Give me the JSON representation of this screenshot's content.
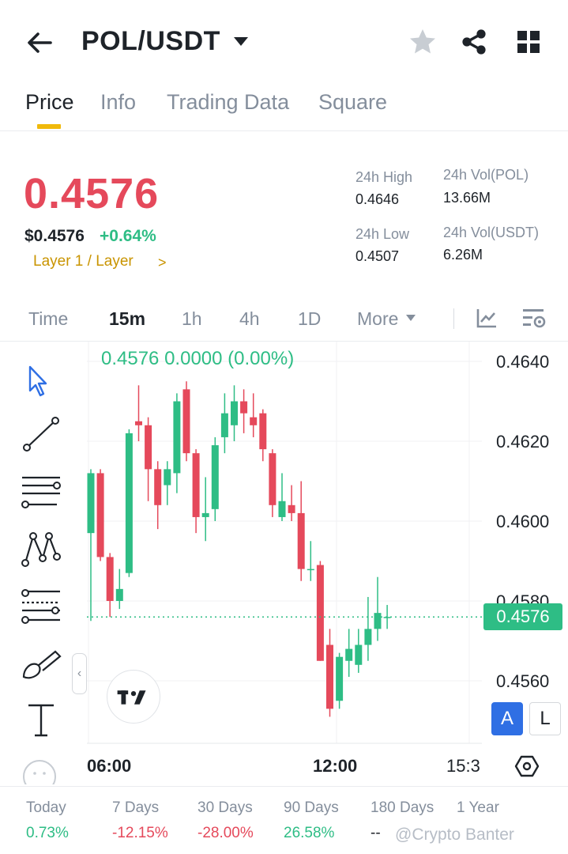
{
  "header": {
    "title": "POL/USDT",
    "icons": [
      "back-arrow-icon",
      "caret-down-icon",
      "star-icon",
      "share-icon",
      "grid-icon"
    ]
  },
  "tabs": [
    {
      "label": "Price",
      "active": true
    },
    {
      "label": "Info",
      "active": false
    },
    {
      "label": "Trading Data",
      "active": false
    },
    {
      "label": "Square",
      "active": false
    }
  ],
  "price": {
    "last": "0.4576",
    "usd": "$0.4576",
    "change": "+0.64%",
    "sector": "Layer 1 / Layer",
    "sector_chevron": ">"
  },
  "stats": {
    "high_label": "24h High",
    "high_value": "0.4646",
    "low_label": "24h Low",
    "low_value": "0.4507",
    "vol_base_label": "24h Vol(POL)",
    "vol_base_value": "13.66M",
    "vol_quote_label": "24h Vol(USDT)",
    "vol_quote_value": "6.26M"
  },
  "intervals": [
    {
      "label": "Time",
      "active": false
    },
    {
      "label": "15m",
      "active": true
    },
    {
      "label": "1h",
      "active": false
    },
    {
      "label": "4h",
      "active": false
    },
    {
      "label": "1D",
      "active": false
    },
    {
      "label": "More",
      "active": false
    }
  ],
  "chart": {
    "ohlc_readout": "0.4576  0.0000 (0.00%)",
    "price_axis": [
      "0.4640",
      "0.4620",
      "0.4600",
      "0.4580",
      "0.4560"
    ],
    "last_price_badge": "0.4576",
    "time_axis": [
      "06:00",
      "12:00",
      "15:3"
    ],
    "collapse_glyph": "‹",
    "mode_a": "A",
    "mode_l": "L",
    "colors": {
      "up": "#2ebd85",
      "down": "#e5495b",
      "accent": "#f0b90b"
    }
  },
  "chart_data": {
    "type": "candlestick",
    "ylim": [
      0.4544,
      0.464
    ],
    "candles": [
      {
        "o": 0.4597,
        "h": 0.4613,
        "l": 0.4575,
        "c": 0.4612
      },
      {
        "o": 0.4612,
        "h": 0.4613,
        "l": 0.459,
        "c": 0.4591
      },
      {
        "o": 0.4591,
        "h": 0.4592,
        "l": 0.4576,
        "c": 0.458
      },
      {
        "o": 0.458,
        "h": 0.4588,
        "l": 0.4578,
        "c": 0.4583
      },
      {
        "o": 0.4587,
        "h": 0.4623,
        "l": 0.4586,
        "c": 0.4622
      },
      {
        "o": 0.4625,
        "h": 0.4634,
        "l": 0.462,
        "c": 0.4624
      },
      {
        "o": 0.4624,
        "h": 0.4626,
        "l": 0.4605,
        "c": 0.4613
      },
      {
        "o": 0.4613,
        "h": 0.4615,
        "l": 0.4598,
        "c": 0.4604
      },
      {
        "o": 0.4609,
        "h": 0.4615,
        "l": 0.4604,
        "c": 0.4613
      },
      {
        "o": 0.4612,
        "h": 0.4632,
        "l": 0.4607,
        "c": 0.463
      },
      {
        "o": 0.4633,
        "h": 0.4635,
        "l": 0.4615,
        "c": 0.4617
      },
      {
        "o": 0.4617,
        "h": 0.4618,
        "l": 0.4597,
        "c": 0.4601
      },
      {
        "o": 0.4601,
        "h": 0.4611,
        "l": 0.4595,
        "c": 0.4602
      },
      {
        "o": 0.4603,
        "h": 0.4621,
        "l": 0.46,
        "c": 0.4619
      },
      {
        "o": 0.4621,
        "h": 0.4632,
        "l": 0.4617,
        "c": 0.4627
      },
      {
        "o": 0.4624,
        "h": 0.4634,
        "l": 0.462,
        "c": 0.463
      },
      {
        "o": 0.463,
        "h": 0.4633,
        "l": 0.4622,
        "c": 0.4627
      },
      {
        "o": 0.4626,
        "h": 0.4632,
        "l": 0.4621,
        "c": 0.4624
      },
      {
        "o": 0.4627,
        "h": 0.4628,
        "l": 0.4615,
        "c": 0.4618
      },
      {
        "o": 0.4617,
        "h": 0.4618,
        "l": 0.4601,
        "c": 0.4604
      },
      {
        "o": 0.4601,
        "h": 0.4612,
        "l": 0.46,
        "c": 0.4605
      },
      {
        "o": 0.4604,
        "h": 0.4609,
        "l": 0.46,
        "c": 0.4602
      },
      {
        "o": 0.4602,
        "h": 0.461,
        "l": 0.4585,
        "c": 0.4588
      },
      {
        "o": 0.4588,
        "h": 0.4595,
        "l": 0.4585,
        "c": 0.4588
      },
      {
        "o": 0.4589,
        "h": 0.459,
        "l": 0.4565,
        "c": 0.4565
      },
      {
        "o": 0.4569,
        "h": 0.4573,
        "l": 0.4551,
        "c": 0.4553
      },
      {
        "o": 0.4555,
        "h": 0.4567,
        "l": 0.4553,
        "c": 0.4566
      },
      {
        "o": 0.4565,
        "h": 0.4573,
        "l": 0.4561,
        "c": 0.4568
      },
      {
        "o": 0.4564,
        "h": 0.4573,
        "l": 0.4562,
        "c": 0.4569
      },
      {
        "o": 0.4569,
        "h": 0.4581,
        "l": 0.4565,
        "c": 0.4573
      },
      {
        "o": 0.4573,
        "h": 0.4586,
        "l": 0.457,
        "c": 0.4577
      },
      {
        "o": 0.4576,
        "h": 0.4579,
        "l": 0.4573,
        "c": 0.4576
      }
    ]
  },
  "performance": [
    {
      "label": "Today",
      "value": "0.73%",
      "trend": "up"
    },
    {
      "label": "7 Days",
      "value": "-12.15%",
      "trend": "down"
    },
    {
      "label": "30 Days",
      "value": "-28.00%",
      "trend": "down"
    },
    {
      "label": "90 Days",
      "value": "26.58%",
      "trend": "up"
    },
    {
      "label": "180 Days",
      "value": "--",
      "trend": "none"
    },
    {
      "label": "1 Year",
      "value": "",
      "trend": "none"
    }
  ],
  "watermark": "@Crypto Banter"
}
